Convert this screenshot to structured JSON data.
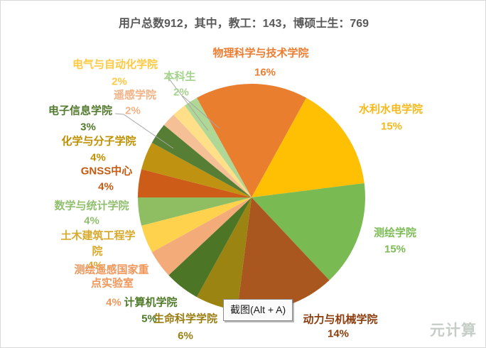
{
  "title": "用户总数912，其中，教工：143，博硕士生：769",
  "watermark": "元计算",
  "tooltip": {
    "text": "截图(Alt + A)"
  },
  "chart_data": {
    "type": "pie",
    "title": "用户总数912，其中，教工：143，博硕士生：769",
    "total_users": 912,
    "faculty_count": 143,
    "grad_student_count": 769,
    "start_angle_deg": -28.8,
    "direction": "clockwise",
    "slices": [
      {
        "label": "物理科学与技术学院",
        "pct": 16,
        "pct_text": "16%",
        "color": "#E97E2F",
        "label_color": "#ED7D31"
      },
      {
        "label": "水利水电学院",
        "pct": 15,
        "pct_text": "15%",
        "color": "#FFC004",
        "label_color": "#F5B91C"
      },
      {
        "label": "测绘学院",
        "pct": 15,
        "pct_text": "15%",
        "color": "#7ABA52",
        "label_color": "#7CBB55"
      },
      {
        "label": "动力与机械学院",
        "pct": 14,
        "pct_text": "14%",
        "color": "#A9571E",
        "label_color": "#8B3C0C"
      },
      {
        "label": "生命科学学院",
        "pct": 6,
        "pct_text": "6%",
        "color": "#9C8412",
        "label_color": "#9A7D10"
      },
      {
        "label": "计算机学院",
        "pct": 5,
        "pct_text": "5%",
        "color": "#4C7526",
        "label_color": "#4E7A27"
      },
      {
        "label": "测绘遥感国家重点实验室",
        "label_line1": "测绘遥感国家重",
        "label_line2": "点实验室",
        "pct": 4,
        "pct_text": "4%",
        "color": "#F3AC79",
        "label_color": "#F0965A"
      },
      {
        "label": "土木建筑工程学院",
        "label_line1": "土木建筑工程学",
        "label_line2": "院",
        "pct": 4,
        "pct_text": "4%",
        "color": "#FFD24E",
        "label_color": "#D8A92A"
      },
      {
        "label": "数学与统计学院",
        "pct": 4,
        "pct_text": "4%",
        "color": "#8FBE62",
        "label_color": "#90BF6E"
      },
      {
        "label": "GNSS中心",
        "pct": 4,
        "pct_text": "4%",
        "color": "#CC5C17",
        "label_color": "#C75A11"
      },
      {
        "label": "化学与分子学院",
        "pct": 4,
        "pct_text": "4%",
        "color": "#BF9211",
        "label_color": "#BF9000"
      },
      {
        "label": "电子信息学院",
        "pct": 3,
        "pct_text": "3%",
        "color": "#567F35",
        "label_color": "#527A2E"
      },
      {
        "label": "遥感学院",
        "pct": 2,
        "pct_text": "2%",
        "color": "#F5C096",
        "label_color": "#F2B285"
      },
      {
        "label": "电气与自动化学院",
        "pct": 2,
        "pct_text": "2%",
        "color": "#FFDF87",
        "label_color": "#FFC941"
      },
      {
        "label": "本科生",
        "pct": 2,
        "pct_text": "2%",
        "color": "#AFD795",
        "label_color": "#A4D38B"
      }
    ]
  }
}
